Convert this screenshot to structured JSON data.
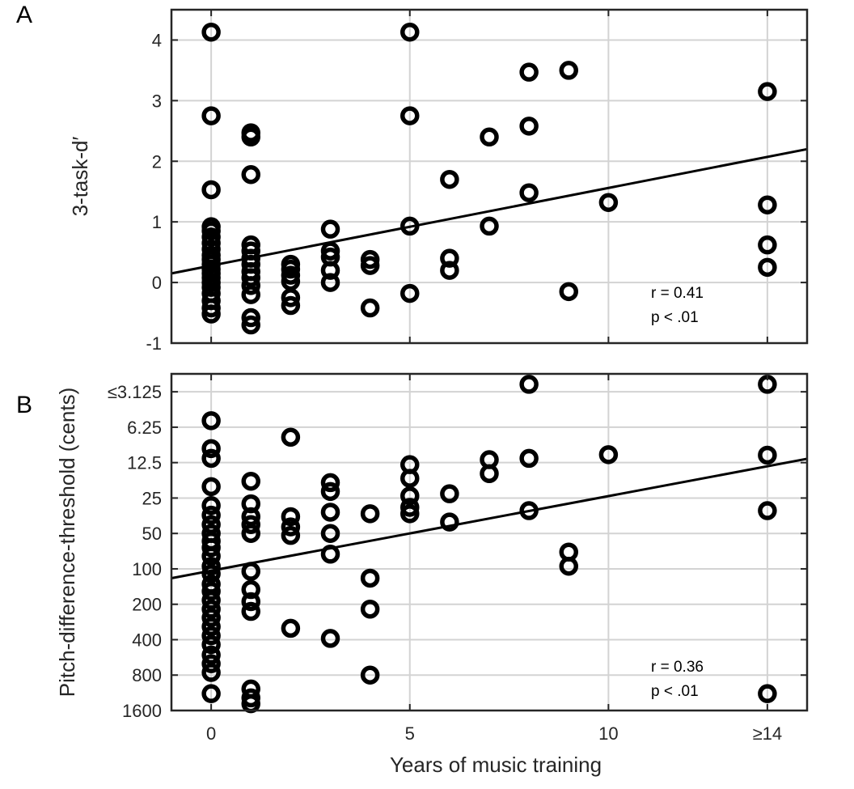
{
  "chart_data": [
    {
      "type": "scatter",
      "panel_label": "A",
      "ylabel": "3-task-d′",
      "xlim": [
        -1,
        15
      ],
      "ylim": [
        -1,
        4.5
      ],
      "xticks": [
        0,
        5,
        10,
        14
      ],
      "xtick_labels": [
        "",
        "",
        "",
        ""
      ],
      "yticks": [
        -1,
        0,
        1,
        2,
        3,
        4
      ],
      "ytick_labels": [
        "-1",
        "0",
        "1",
        "2",
        "3",
        "4"
      ],
      "grid": true,
      "annotation": [
        "r = 0.41",
        "p < .01"
      ],
      "fit_line": {
        "x": [
          -1,
          15
        ],
        "y": [
          0.15,
          2.2
        ]
      },
      "points": [
        [
          0,
          4.13
        ],
        [
          0,
          2.75
        ],
        [
          0,
          1.53
        ],
        [
          0,
          0.92
        ],
        [
          0,
          0.85
        ],
        [
          0,
          0.75
        ],
        [
          0,
          0.65
        ],
        [
          0,
          0.55
        ],
        [
          0,
          0.45
        ],
        [
          0,
          0.38
        ],
        [
          0,
          0.3
        ],
        [
          0,
          0.22
        ],
        [
          0,
          0.15
        ],
        [
          0,
          0.08
        ],
        [
          0,
          0.0
        ],
        [
          0,
          -0.08
        ],
        [
          0,
          -0.18
        ],
        [
          0,
          -0.3
        ],
        [
          0,
          -0.42
        ],
        [
          0,
          -0.52
        ],
        [
          1,
          2.47
        ],
        [
          1,
          2.4
        ],
        [
          1,
          1.78
        ],
        [
          1,
          0.62
        ],
        [
          1,
          0.52
        ],
        [
          1,
          0.4
        ],
        [
          1,
          0.3
        ],
        [
          1,
          0.18
        ],
        [
          1,
          0.08
        ],
        [
          1,
          -0.05
        ],
        [
          1,
          -0.2
        ],
        [
          1,
          -0.58
        ],
        [
          1,
          -0.7
        ],
        [
          2,
          0.3
        ],
        [
          2,
          0.22
        ],
        [
          2,
          0.12
        ],
        [
          2,
          0.02
        ],
        [
          2,
          -0.25
        ],
        [
          2,
          -0.38
        ],
        [
          3,
          0.88
        ],
        [
          3,
          0.52
        ],
        [
          3,
          0.42
        ],
        [
          3,
          0.2
        ],
        [
          3,
          0.0
        ],
        [
          4,
          0.38
        ],
        [
          4,
          0.28
        ],
        [
          4,
          -0.42
        ],
        [
          5,
          4.13
        ],
        [
          5,
          2.75
        ],
        [
          5,
          0.93
        ],
        [
          5,
          -0.18
        ],
        [
          6,
          1.7
        ],
        [
          6,
          0.4
        ],
        [
          6,
          0.2
        ],
        [
          7,
          2.4
        ],
        [
          7,
          0.93
        ],
        [
          8,
          3.47
        ],
        [
          8,
          2.58
        ],
        [
          8,
          1.48
        ],
        [
          9,
          3.5
        ],
        [
          9,
          -0.15
        ],
        [
          10,
          1.32
        ],
        [
          14,
          3.15
        ],
        [
          14,
          1.28
        ],
        [
          14,
          0.62
        ],
        [
          14,
          0.25
        ]
      ]
    },
    {
      "type": "scatter",
      "panel_label": "B",
      "xlabel": "Years of music training",
      "ylabel": "Pitch-difference-threshold (cents)",
      "y_scale": "log2-reversed",
      "xlim": [
        -1,
        15
      ],
      "ylim": [
        1600,
        2.2
      ],
      "xticks": [
        0,
        5,
        10,
        14
      ],
      "xtick_labels": [
        "0",
        "5",
        "10",
        "≥14"
      ],
      "yticks": [
        1600,
        800,
        400,
        200,
        100,
        50,
        25,
        12.5,
        6.25,
        3.125
      ],
      "ytick_labels": [
        "1600",
        "800",
        "400",
        "200",
        "100",
        "50",
        "25",
        "12.5",
        "6.25",
        "≤3.125"
      ],
      "grid": true,
      "annotation": [
        "r = 0.36",
        "p < .01"
      ],
      "fit_line": {
        "x": [
          -1,
          15
        ],
        "y": [
          120,
          11.6
        ]
      },
      "points": [
        [
          0,
          5.5
        ],
        [
          0,
          9.5
        ],
        [
          0,
          11.5
        ],
        [
          0,
          20
        ],
        [
          0,
          29
        ],
        [
          0,
          35
        ],
        [
          0,
          42
        ],
        [
          0,
          50
        ],
        [
          0,
          58
        ],
        [
          0,
          66
        ],
        [
          0,
          78
        ],
        [
          0,
          95
        ],
        [
          0,
          110
        ],
        [
          0,
          135
        ],
        [
          0,
          155
        ],
        [
          0,
          185
        ],
        [
          0,
          220
        ],
        [
          0,
          260
        ],
        [
          0,
          310
        ],
        [
          0,
          370
        ],
        [
          0,
          440
        ],
        [
          0,
          540
        ],
        [
          0,
          640
        ],
        [
          0,
          760
        ],
        [
          0,
          1150
        ],
        [
          1,
          18
        ],
        [
          1,
          28
        ],
        [
          1,
          36
        ],
        [
          1,
          42
        ],
        [
          1,
          50
        ],
        [
          1,
          105
        ],
        [
          1,
          150
        ],
        [
          1,
          190
        ],
        [
          1,
          230
        ],
        [
          1,
          1050
        ],
        [
          1,
          1250
        ],
        [
          1,
          1400
        ],
        [
          2,
          7.6
        ],
        [
          2,
          36
        ],
        [
          2,
          44
        ],
        [
          2,
          52
        ],
        [
          2,
          320
        ],
        [
          3,
          18.5
        ],
        [
          3,
          22
        ],
        [
          3,
          33
        ],
        [
          3,
          50
        ],
        [
          3,
          75
        ],
        [
          3,
          390
        ],
        [
          4,
          34
        ],
        [
          4,
          120
        ],
        [
          4,
          220
        ],
        [
          4,
          800
        ],
        [
          5,
          13
        ],
        [
          5,
          17
        ],
        [
          5,
          24
        ],
        [
          5,
          30
        ],
        [
          5,
          34
        ],
        [
          6,
          23
        ],
        [
          6,
          40
        ],
        [
          7,
          11.8
        ],
        [
          7,
          15.5
        ],
        [
          8,
          2.7
        ],
        [
          8,
          11.5
        ],
        [
          8,
          32
        ],
        [
          9,
          72
        ],
        [
          9,
          95
        ],
        [
          10,
          10.7
        ],
        [
          14,
          2.7
        ],
        [
          14,
          10.8
        ],
        [
          14,
          32
        ],
        [
          14,
          1150
        ]
      ]
    }
  ]
}
